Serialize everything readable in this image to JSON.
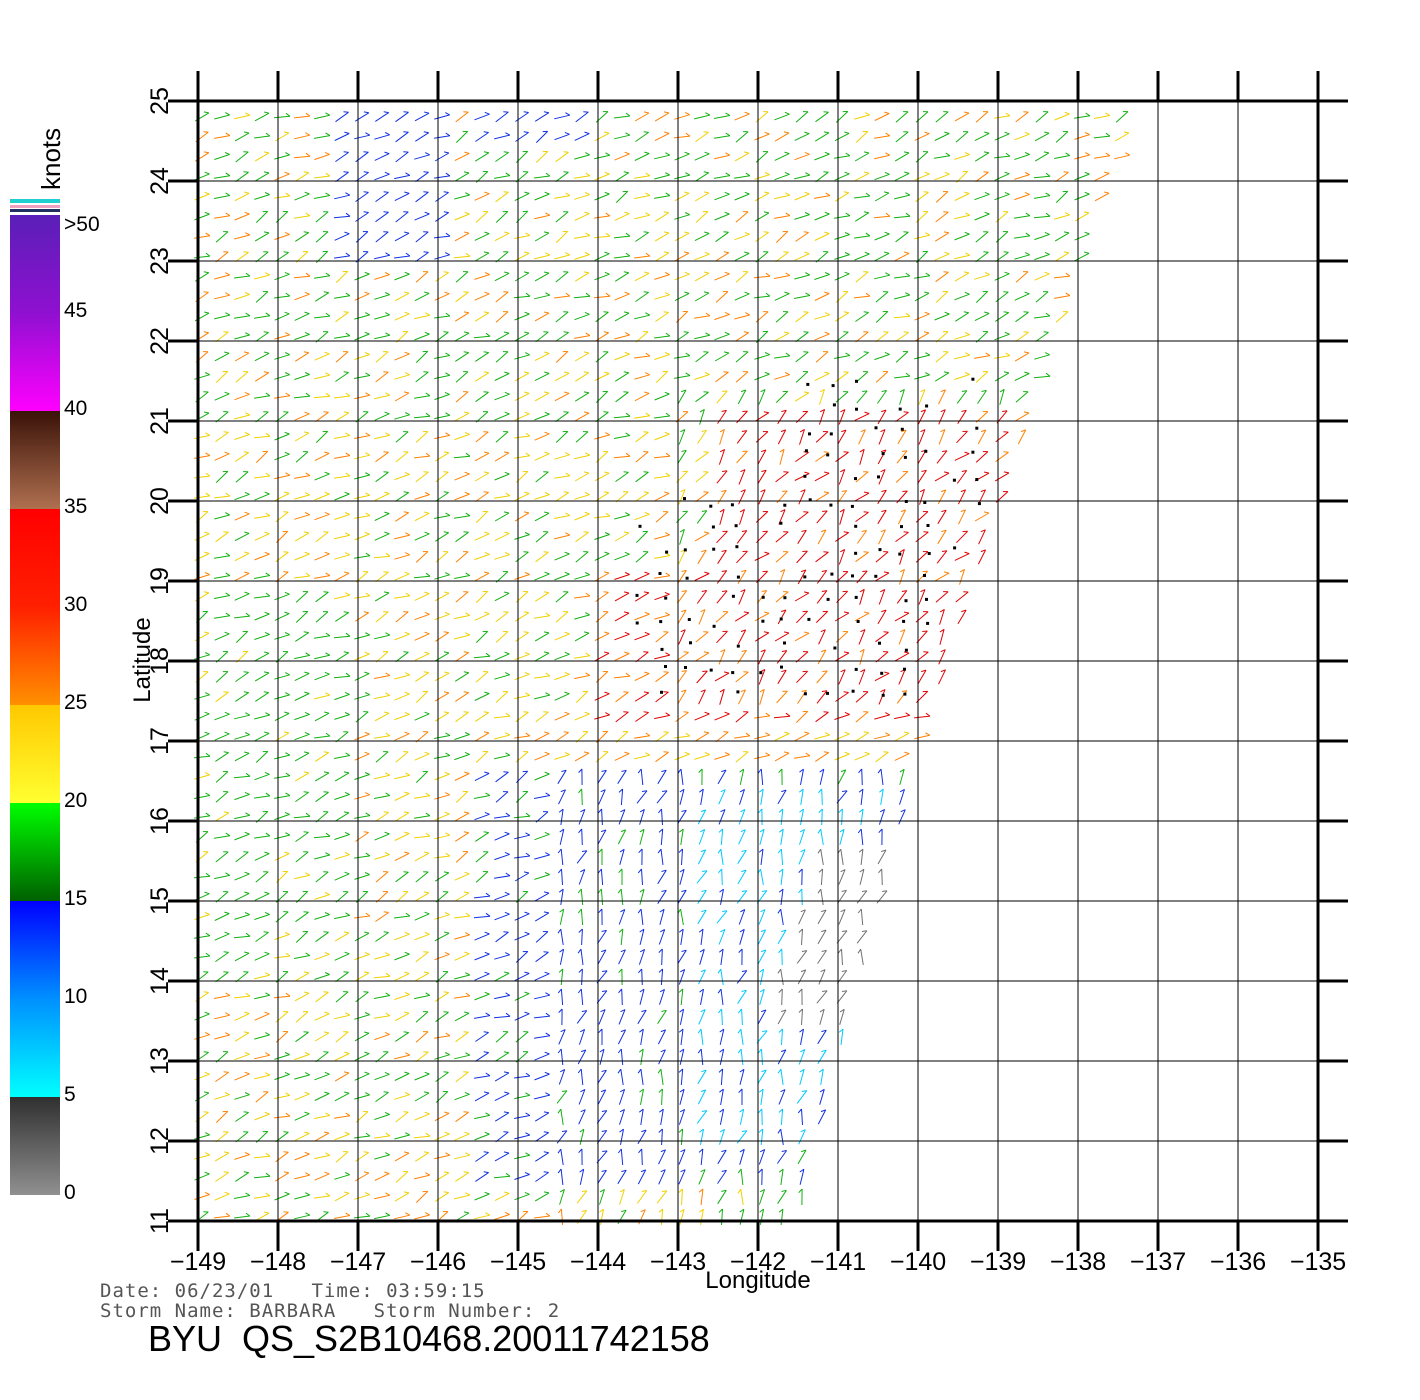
{
  "map": {
    "x_axis": {
      "label": "Longitude",
      "range": [
        -149,
        -135
      ],
      "ticks": [
        "−149",
        "−148",
        "−147",
        "−146",
        "−145",
        "−144",
        "−143",
        "−142",
        "−141",
        "−140",
        "−139",
        "−138",
        "−137",
        "−136",
        "−135"
      ]
    },
    "y_axis": {
      "label": "Latitude",
      "range": [
        11,
        25
      ],
      "ticks": [
        "11",
        "12",
        "13",
        "14",
        "15",
        "16",
        "17",
        "18",
        "19",
        "20",
        "21",
        "22",
        "23",
        "24",
        "25"
      ]
    },
    "grid": true,
    "swath_edge": [
      [
        -141.5,
        11
      ],
      [
        -140.2,
        16
      ],
      [
        -139.6,
        18
      ],
      [
        -138.6,
        21
      ],
      [
        -137.2,
        25
      ]
    ],
    "storm_flag_region": {
      "lon": [
        -143.5,
        -139
      ],
      "lat": [
        17.6,
        21.6
      ]
    },
    "colors": {
      "calm": "#707070",
      "light": "#00c8ff",
      "moderate_blue": "#1030e0",
      "green": "#10b010",
      "yellow": "#f0d000",
      "orange": "#ff8000",
      "red": "#e00000",
      "brown": "#6b2a10",
      "magenta": "#ff00ff",
      "purple": "#6020c0"
    }
  },
  "colorbar": {
    "unit": "knots",
    "labels": [
      ">50",
      "45",
      "40",
      "35",
      "30",
      "25",
      "20",
      "15",
      "10",
      "5",
      "0"
    ]
  },
  "info": {
    "date_line": "Date: 06/23/01   Time: 03:59:15",
    "storm_line": "Storm Name: BARBARA   Storm Number: 2"
  },
  "title": "BYU  QS_S2B10468.20011742158"
}
